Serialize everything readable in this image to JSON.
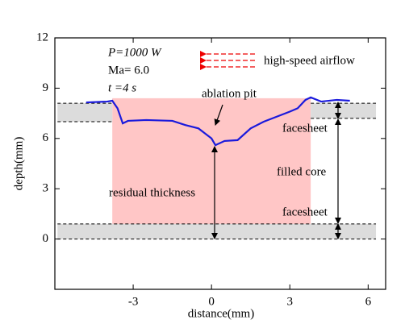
{
  "chart_data": {
    "type": "line",
    "xlabel": "distance(mm)",
    "ylabel": "depth(mm)",
    "xlim": [
      -6,
      6.67
    ],
    "ylim": [
      -3,
      12
    ],
    "xticks": [
      -3,
      0,
      3,
      6
    ],
    "yticks": [
      0,
      3,
      6,
      9,
      12
    ],
    "series": [
      {
        "color": "#1a1adc",
        "x": [
          -4.8,
          -4.0,
          -3.8,
          -3.6,
          -3.4,
          -3.2,
          -2.5,
          -1.5,
          -1.0,
          -0.5,
          0.0,
          0.15,
          0.5,
          1.0,
          1.5,
          2.0,
          2.5,
          3.0,
          3.3,
          3.6,
          3.8,
          4.2,
          4.8,
          5.3
        ],
        "values": [
          8.15,
          8.2,
          8.25,
          7.8,
          6.9,
          7.05,
          7.1,
          7.05,
          6.8,
          6.6,
          6.0,
          5.6,
          5.85,
          5.9,
          6.6,
          7.0,
          7.3,
          7.6,
          7.8,
          8.3,
          8.45,
          8.2,
          8.3,
          8.25
        ]
      }
    ],
    "regions": [
      {
        "x": [
          -3.8,
          3.8
        ],
        "y": [
          0,
          8.4
        ],
        "color": "#ffc6c6"
      },
      {
        "x": [
          -5.9,
          -3.8
        ],
        "y": [
          7.0,
          8.1
        ],
        "color": "#dcdcdc"
      },
      {
        "x": [
          3.8,
          6.3
        ],
        "y": [
          7.2,
          8.1
        ],
        "color": "#dcdcdc"
      },
      {
        "x": [
          -5.9,
          6.3
        ],
        "y": [
          0,
          0.9
        ],
        "color": "#dcdcdc"
      }
    ],
    "annotations": {
      "power": "P=1000 W",
      "mach": "Ma= 6.0",
      "time": "t =4 s",
      "airflow": "high-speed airflow",
      "pit": "ablation pit",
      "residual": "residual thickness",
      "facesheet_top": "facesheet",
      "core": "filled core",
      "facesheet_bottom": "facesheet"
    }
  }
}
